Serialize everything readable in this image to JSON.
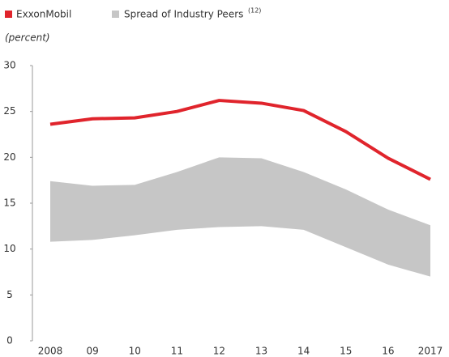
{
  "chart_data": {
    "type": "line",
    "units_label": "(percent)",
    "categories": [
      "2008",
      "09",
      "10",
      "11",
      "12",
      "13",
      "14",
      "15",
      "16",
      "2017"
    ],
    "series": [
      {
        "name": "ExxonMobil",
        "color": "#e0242c",
        "values": [
          23.6,
          24.2,
          24.3,
          25.0,
          26.2,
          25.9,
          25.1,
          22.8,
          19.9,
          17.6
        ]
      },
      {
        "name": "Spread of Industry Peers",
        "name_superscript": "(12)",
        "color": "#c6c6c6",
        "high": [
          17.4,
          16.9,
          17.0,
          18.4,
          20.0,
          19.9,
          18.4,
          16.5,
          14.3,
          12.6
        ],
        "low": [
          10.8,
          11.0,
          11.5,
          12.1,
          12.4,
          12.5,
          12.1,
          10.2,
          8.3,
          7.0
        ]
      }
    ],
    "ylim": [
      0,
      30
    ],
    "yticks": [
      0,
      5,
      10,
      15,
      20,
      25,
      30
    ]
  }
}
